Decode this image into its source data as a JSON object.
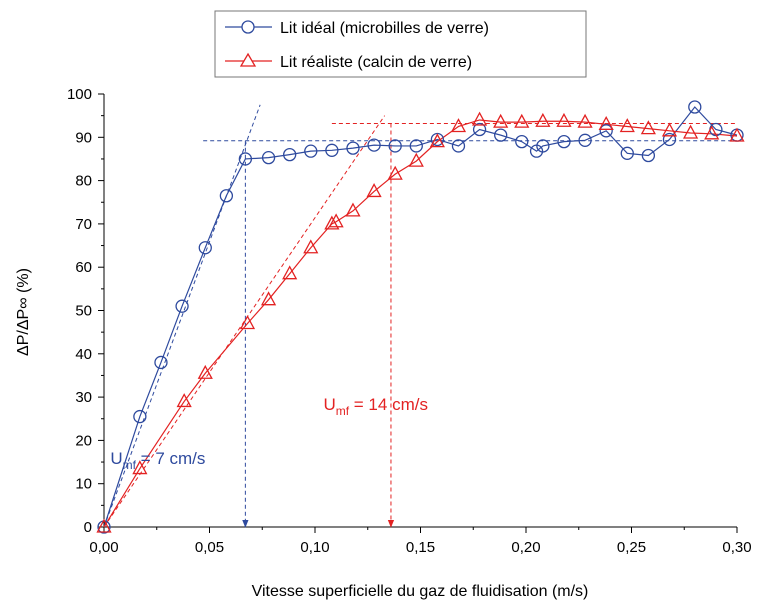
{
  "chart_data": {
    "type": "line",
    "xlabel": "Vitesse superficielle du gaz de fluidisation (m/s)",
    "ylabel": "ΔP/ΔP∞ (%)",
    "xlim": [
      0,
      0.3
    ],
    "ylim": [
      0,
      100
    ],
    "x_ticks": [
      "0,00",
      "0,05",
      "0,10",
      "0,15",
      "0,20",
      "0,25",
      "0,30"
    ],
    "y_ticks": [
      "0",
      "10",
      "20",
      "30",
      "40",
      "50",
      "60",
      "70",
      "80",
      "90",
      "100"
    ],
    "grid": false,
    "legend_position": "top-center",
    "series": [
      {
        "name": "Lit idéal (microbilles de verre)",
        "color": "#2E4A9E",
        "marker": "circle",
        "x": [
          0,
          0.017,
          0.027,
          0.037,
          0.048,
          0.058,
          0.067,
          0.078,
          0.088,
          0.098,
          0.108,
          0.118,
          0.128,
          0.138,
          0.148,
          0.158,
          0.168,
          0.178,
          0.188,
          0.198,
          0.205,
          0.208,
          0.218,
          0.228,
          0.238,
          0.248,
          0.258,
          0.268,
          0.28,
          0.29,
          0.3
        ],
        "y": [
          0,
          25.5,
          38,
          51,
          64.5,
          76.5,
          85,
          85.3,
          86,
          86.8,
          87,
          87.5,
          88.2,
          88,
          88,
          89.5,
          88,
          91.8,
          90.5,
          89,
          86.8,
          88,
          89,
          89.3,
          91.5,
          86.3,
          85.8,
          89.5,
          97,
          91.8,
          90.5
        ]
      },
      {
        "name": "Lit réaliste (calcin de verre)",
        "color": "#E32222",
        "marker": "triangle",
        "x": [
          0,
          0.017,
          0.038,
          0.048,
          0.068,
          0.078,
          0.088,
          0.098,
          0.108,
          0.11,
          0.118,
          0.128,
          0.138,
          0.148,
          0.158,
          0.168,
          0.178,
          0.188,
          0.198,
          0.208,
          0.218,
          0.228,
          0.238,
          0.248,
          0.258,
          0.268,
          0.278,
          0.288,
          0.3
        ],
        "y": [
          0,
          13.5,
          29,
          35.5,
          47,
          52.5,
          58.5,
          64.5,
          70,
          70.5,
          73,
          77.5,
          81.5,
          84.5,
          89,
          92.5,
          94,
          93.5,
          93.5,
          93.7,
          93.7,
          93.5,
          93,
          92.5,
          92,
          91.5,
          91,
          90.8,
          90.3
        ]
      }
    ],
    "reference_lines": [
      {
        "kind": "tangent",
        "color": "#2E4A9E",
        "x": [
          0,
          0.074
        ],
        "y": [
          0,
          97.5
        ]
      },
      {
        "kind": "plateau",
        "color": "#2E4A9E",
        "x": [
          0.047,
          0.3
        ],
        "y": [
          89.2,
          89.2
        ]
      },
      {
        "kind": "umf-marker",
        "color": "#2E4A9E",
        "x": [
          0.067,
          0.067
        ],
        "y": [
          89.2,
          0
        ]
      },
      {
        "kind": "tangent",
        "color": "#E32222",
        "x": [
          0,
          0.133
        ],
        "y": [
          0,
          95
        ]
      },
      {
        "kind": "plateau",
        "color": "#E32222",
        "x": [
          0.108,
          0.3
        ],
        "y": [
          93.2,
          93.2
        ]
      },
      {
        "kind": "umf-marker",
        "color": "#E32222",
        "x": [
          0.136,
          0.136
        ],
        "y": [
          93.2,
          0
        ]
      }
    ],
    "annotations": [
      {
        "base": "U",
        "sub": "mf",
        "rest": " = 7 cm/s",
        "color": "#2E4A9E",
        "x": 0.003,
        "y": 14.5
      },
      {
        "base": "U",
        "sub": "mf",
        "rest": " = 14 cm/s",
        "color": "#E32222",
        "x": 0.104,
        "y": 27
      }
    ]
  }
}
